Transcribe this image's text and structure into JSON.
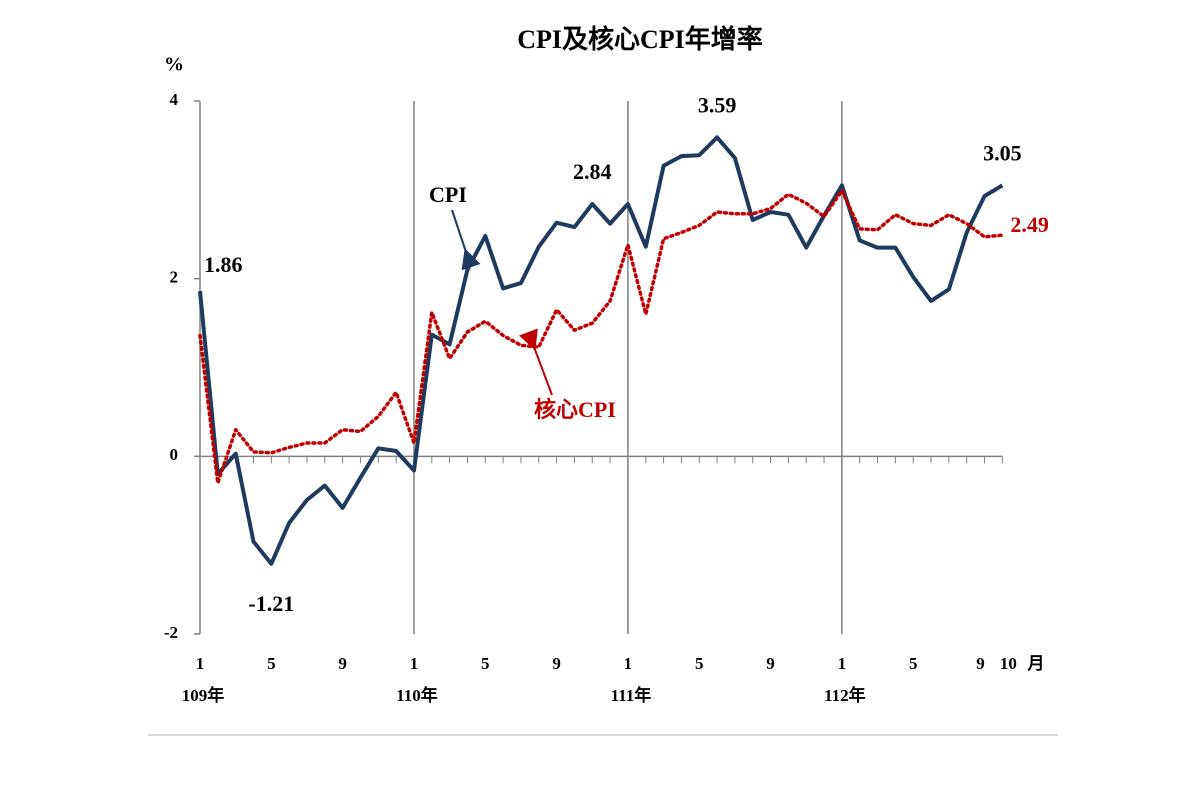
{
  "chart_data": {
    "type": "line",
    "title": "CPI及核心CPI年增率",
    "y_unit": "%",
    "x_label": "月",
    "categories": [
      "1",
      null,
      null,
      null,
      "5",
      null,
      null,
      null,
      "9",
      null,
      null,
      null,
      "1",
      null,
      null,
      null,
      "5",
      null,
      null,
      null,
      "9",
      null,
      null,
      null,
      "1",
      null,
      null,
      null,
      "5",
      null,
      null,
      null,
      "9",
      null,
      null,
      null,
      "1",
      null,
      null,
      null,
      "5",
      null,
      null,
      null,
      "9",
      "10"
    ],
    "year_groups": [
      "109年",
      "110年",
      "111年",
      "112年"
    ],
    "ylim": [
      -2,
      4
    ],
    "yticks": [
      -2,
      0,
      2,
      4
    ],
    "series": [
      {
        "name": "CPI",
        "color": "#1f3a5f",
        "style": "solid",
        "values": [
          1.86,
          -0.2,
          0.03,
          -0.96,
          -1.21,
          -0.75,
          -0.49,
          -0.33,
          -0.58,
          -0.24,
          0.09,
          0.06,
          -0.16,
          1.37,
          1.26,
          2.1,
          2.48,
          1.89,
          1.95,
          2.36,
          2.63,
          2.58,
          2.84,
          2.62,
          2.84,
          2.36,
          3.27,
          3.38,
          3.39,
          3.59,
          3.36,
          2.66,
          2.75,
          2.72,
          2.35,
          2.71,
          3.05,
          2.43,
          2.35,
          2.35,
          2.02,
          1.75,
          1.88,
          2.52,
          2.93,
          3.05
        ],
        "value_labels": [
          "1.86",
          null,
          null,
          null,
          "-1.21",
          null,
          null,
          null,
          null,
          null,
          null,
          null,
          null,
          null,
          null,
          null,
          null,
          null,
          null,
          null,
          null,
          null,
          "2.84",
          null,
          null,
          null,
          null,
          null,
          null,
          "3.59",
          null,
          null,
          null,
          null,
          null,
          null,
          null,
          null,
          null,
          null,
          null,
          null,
          null,
          null,
          null,
          "3.05"
        ]
      },
      {
        "name": "核心CPI",
        "color": "#c00000",
        "style": "dotted",
        "values": [
          1.36,
          -0.3,
          0.3,
          0.05,
          0.04,
          0.1,
          0.15,
          0.15,
          0.3,
          0.28,
          0.45,
          0.72,
          0.15,
          1.62,
          1.1,
          1.4,
          1.52,
          1.36,
          1.25,
          1.23,
          1.65,
          1.42,
          1.5,
          1.75,
          2.38,
          1.6,
          2.45,
          2.52,
          2.6,
          2.75,
          2.73,
          2.73,
          2.79,
          2.95,
          2.85,
          2.7,
          2.99,
          2.56,
          2.55,
          2.72,
          2.62,
          2.6,
          2.72,
          2.62,
          2.47,
          2.49
        ],
        "value_labels": [
          null,
          null,
          null,
          null,
          null,
          null,
          null,
          null,
          null,
          null,
          null,
          null,
          null,
          null,
          null,
          null,
          null,
          null,
          null,
          null,
          null,
          null,
          null,
          null,
          null,
          null,
          null,
          null,
          null,
          null,
          null,
          null,
          null,
          null,
          null,
          null,
          null,
          null,
          null,
          null,
          null,
          null,
          null,
          null,
          null,
          "2.49"
        ]
      }
    ]
  }
}
